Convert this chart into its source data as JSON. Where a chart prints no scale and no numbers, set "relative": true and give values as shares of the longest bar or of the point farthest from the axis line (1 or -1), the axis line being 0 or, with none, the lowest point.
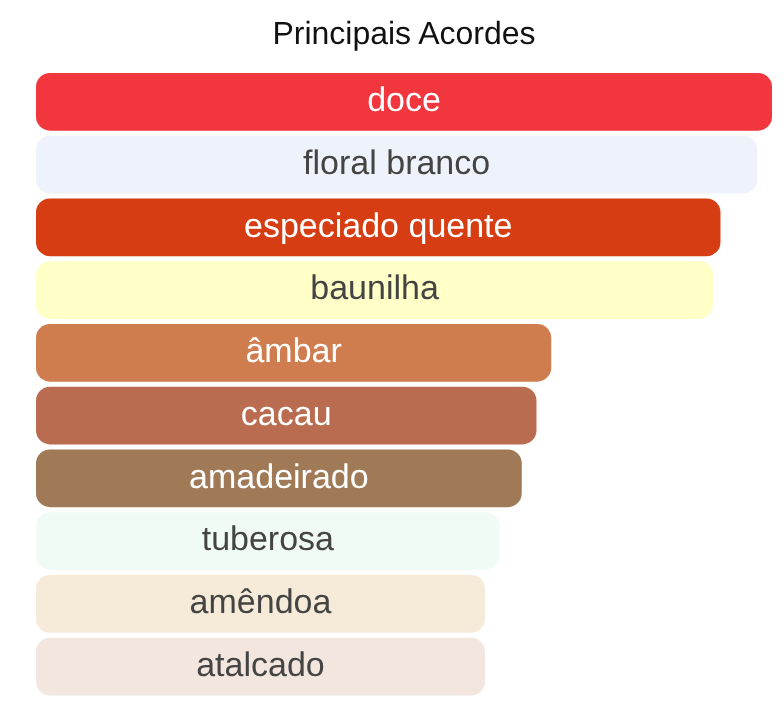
{
  "chart_data": {
    "type": "bar",
    "title": "Principais Acordes",
    "orientation": "horizontal",
    "relative": true,
    "legend": false,
    "categories": [
      "doce",
      "floral branco",
      "especiado quente",
      "baunilha",
      "âmbar",
      "cacau",
      "amadeirado",
      "tuberosa",
      "amêndoa",
      "atalcado"
    ],
    "values": [
      1,
      0.98,
      0.93,
      0.92,
      0.7,
      0.68,
      0.66,
      0.63,
      0.61,
      0.61
    ],
    "colors": [
      "#f2363d",
      "#eef2fb",
      "#d63d12",
      "#ffffc8",
      "#cf7c4f",
      "#b96c4f",
      "#a07a56",
      "#f0fbf5",
      "#f6ead8",
      "#f2e6de"
    ]
  }
}
